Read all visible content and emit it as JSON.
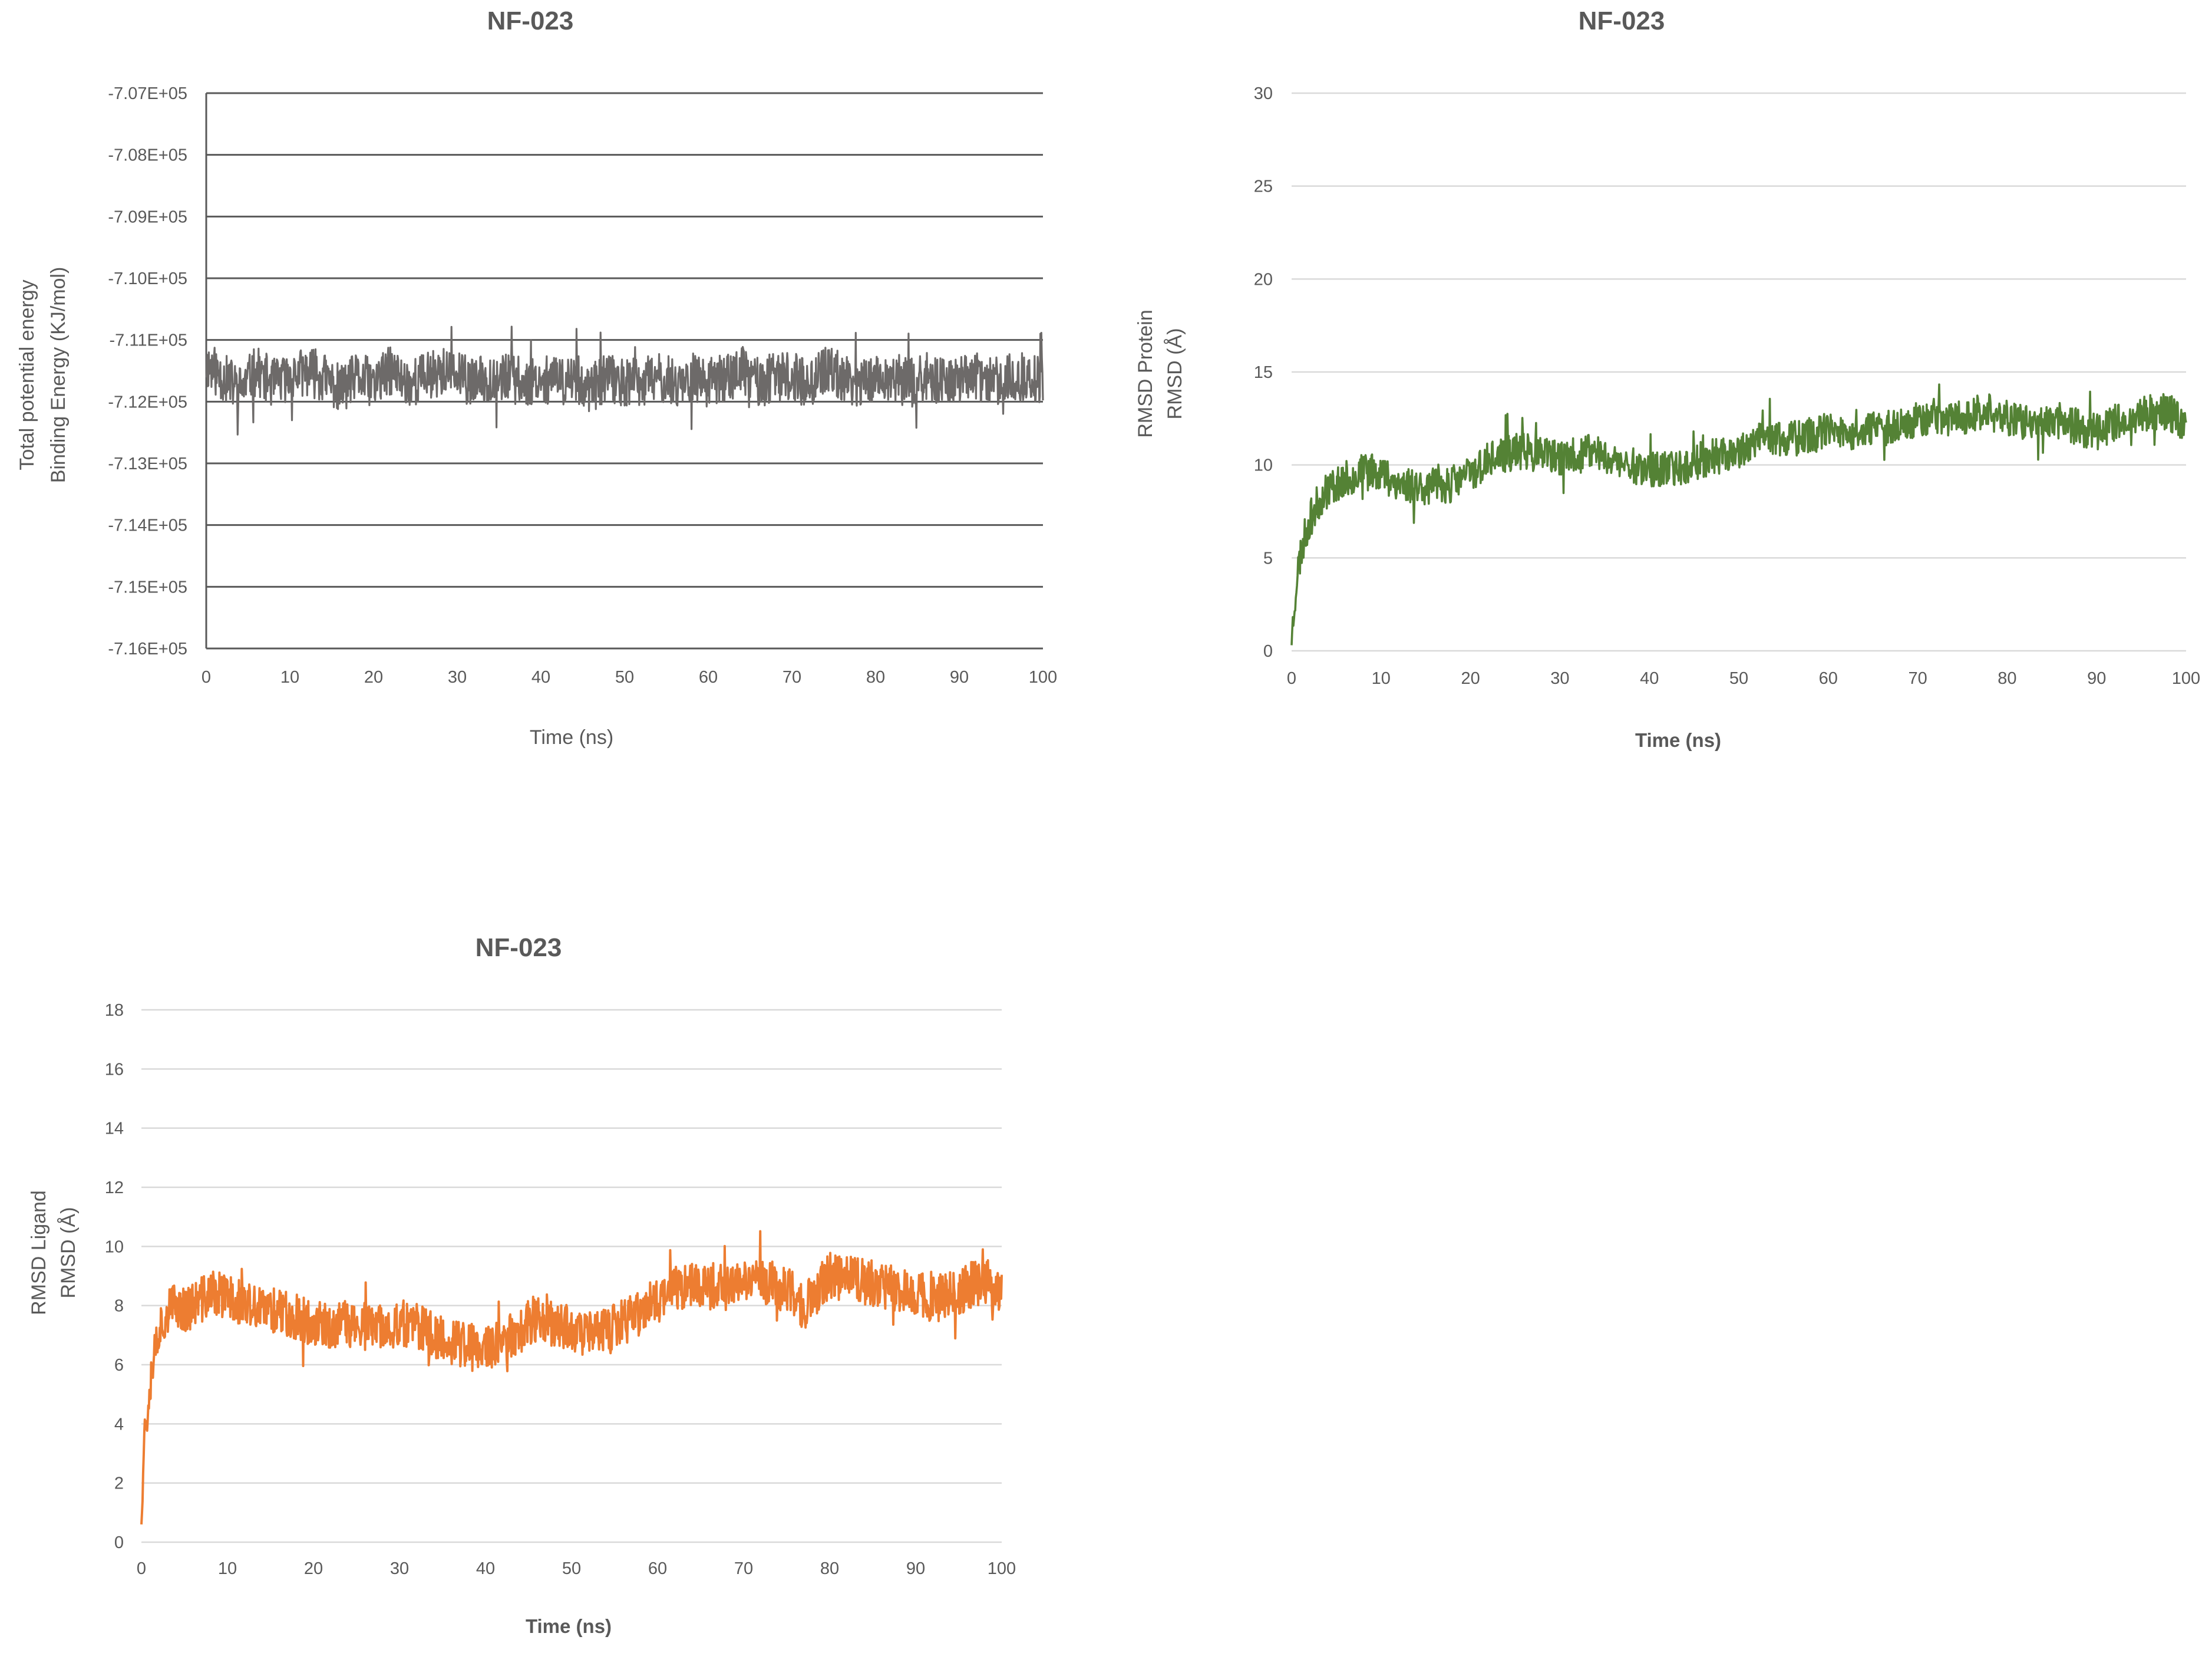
{
  "chart_data": [
    {
      "type": "line",
      "title": "NF-023",
      "xlabel": "Time (ns)",
      "ylabel": [
        "Total potential energy",
        "Binding Energy (KJ/mol)"
      ],
      "xlim": [
        0,
        100
      ],
      "ylim": [
        -716000,
        -707000
      ],
      "x_ticks": [
        "0",
        "10",
        "20",
        "30",
        "40",
        "50",
        "60",
        "70",
        "80",
        "90",
        "100"
      ],
      "y_ticks": [
        "-7.07E+05",
        "-7.08E+05",
        "-7.09E+05",
        "-7.10E+05",
        "-7.11E+05",
        "-7.12E+05",
        "-7.13E+05",
        "-7.14E+05",
        "-7.15E+05",
        "-7.16E+05"
      ],
      "grid": true,
      "series": [
        {
          "color": "#6d6a69",
          "x": [
            0,
            2,
            4,
            6,
            8,
            10,
            12,
            14,
            16,
            18,
            20,
            22,
            24,
            26,
            28,
            30,
            32,
            34,
            36,
            38,
            40,
            42,
            44,
            46,
            48,
            50,
            52,
            54,
            56,
            58,
            60,
            62,
            64,
            66,
            68,
            70,
            72,
            74,
            76,
            78,
            80,
            82,
            84,
            86,
            88,
            90,
            92,
            94,
            96,
            98,
            100
          ],
          "y": [
            -711400,
            -711600,
            -711800,
            -711500,
            -711700,
            -711600,
            -711500,
            -711600,
            -711800,
            -711600,
            -711700,
            -711500,
            -711700,
            -711600,
            -711500,
            -711600,
            -711700,
            -711600,
            -711600,
            -711700,
            -711600,
            -711700,
            -711600,
            -711800,
            -711600,
            -711700,
            -711700,
            -711600,
            -711700,
            -711600,
            -711700,
            -711600,
            -711500,
            -711700,
            -711600,
            -711600,
            -711700,
            -711500,
            -711600,
            -711700,
            -711600,
            -711600,
            -711700,
            -711600,
            -711700,
            -711600,
            -711600,
            -711700,
            -711600,
            -711600,
            -711700
          ],
          "noise_amplitude": 400
        }
      ]
    },
    {
      "type": "line",
      "title": "NF-023",
      "xlabel": "Time (ns)",
      "ylabel": [
        "RMSD Protein",
        "RMSD (Å)"
      ],
      "xlim": [
        0,
        100
      ],
      "ylim": [
        0,
        30
      ],
      "x_ticks": [
        "0",
        "10",
        "20",
        "30",
        "40",
        "50",
        "60",
        "70",
        "80",
        "90",
        "100"
      ],
      "y_ticks": [
        "30",
        "25",
        "20",
        "15",
        "10",
        "5",
        "0"
      ],
      "grid": true,
      "series": [
        {
          "color": "#548235",
          "x": [
            0,
            0.3,
            0.6,
            1,
            1.5,
            2,
            3,
            4,
            5,
            6,
            7,
            8,
            9,
            10,
            12,
            14,
            16,
            18,
            20,
            22,
            24,
            26,
            28,
            30,
            32,
            34,
            36,
            38,
            40,
            42,
            44,
            46,
            48,
            50,
            52,
            54,
            56,
            58,
            60,
            62,
            64,
            66,
            68,
            70,
            72,
            74,
            76,
            78,
            80,
            82,
            84,
            86,
            88,
            90,
            92,
            94,
            96,
            98,
            100
          ],
          "y": [
            0.5,
            2.5,
            4,
            5.2,
            6.2,
            7,
            8,
            8.7,
            9,
            9.2,
            9.4,
            9.6,
            9.8,
            9.6,
            9,
            8.9,
            8.8,
            9,
            9.6,
            10.2,
            10.6,
            10.8,
            10.5,
            10.3,
            10.5,
            10.8,
            10.2,
            10,
            9.8,
            9.7,
            10,
            10.3,
            10.5,
            10.8,
            11.2,
            11.5,
            11.4,
            11.6,
            11.8,
            11.5,
            11.7,
            12,
            12.2,
            12.5,
            12.6,
            12.5,
            12.7,
            12.8,
            12.6,
            12.2,
            12.5,
            12.4,
            12,
            11.8,
            12.3,
            12.5,
            12.8,
            12.9,
            12.2
          ],
          "noise_amplitude": 1.0
        }
      ]
    },
    {
      "type": "line",
      "title": "NF-023",
      "xlabel": "Time (ns)",
      "ylabel": [
        "RMSD Ligand",
        "RMSD (Å)"
      ],
      "xlim": [
        0,
        100
      ],
      "ylim": [
        0,
        18
      ],
      "x_ticks": [
        "0",
        "10",
        "20",
        "30",
        "40",
        "50",
        "60",
        "70",
        "80",
        "90",
        "100"
      ],
      "y_ticks": [
        "18",
        "16",
        "14",
        "12",
        "10",
        "8",
        "6",
        "4",
        "2",
        "0"
      ],
      "grid": true,
      "series": [
        {
          "color": "#ed7d31",
          "x": [
            0,
            0.3,
            0.6,
            1,
            1.5,
            2,
            3,
            4,
            5,
            6,
            8,
            10,
            12,
            14,
            16,
            18,
            20,
            22,
            24,
            26,
            28,
            30,
            32,
            34,
            36,
            38,
            40,
            42,
            44,
            46,
            48,
            50,
            52,
            54,
            56,
            58,
            60,
            62,
            64,
            66,
            68,
            70,
            72,
            74,
            76,
            77,
            78,
            80,
            82,
            84,
            86,
            88,
            90,
            92,
            94,
            96,
            98,
            100
          ],
          "y": [
            1,
            3.5,
            4.2,
            5.5,
            6.5,
            7.2,
            7.8,
            8,
            7.9,
            8,
            8.4,
            8.3,
            8,
            7.8,
            7.9,
            7.6,
            7.4,
            7.2,
            7.4,
            7.3,
            7.2,
            7.4,
            7.3,
            7,
            6.8,
            6.6,
            6.5,
            6.7,
            7.2,
            7.6,
            7.4,
            7.2,
            7,
            7.1,
            7.4,
            7.8,
            8.2,
            8.6,
            8.8,
            8.7,
            8.6,
            8.8,
            8.9,
            8.6,
            8.4,
            7.8,
            8.3,
            9,
            8.9,
            8.8,
            8.7,
            8.5,
            8.4,
            8.2,
            8.4,
            8.6,
            8.9,
            8.5
          ],
          "noise_amplitude": 0.8
        }
      ]
    }
  ]
}
